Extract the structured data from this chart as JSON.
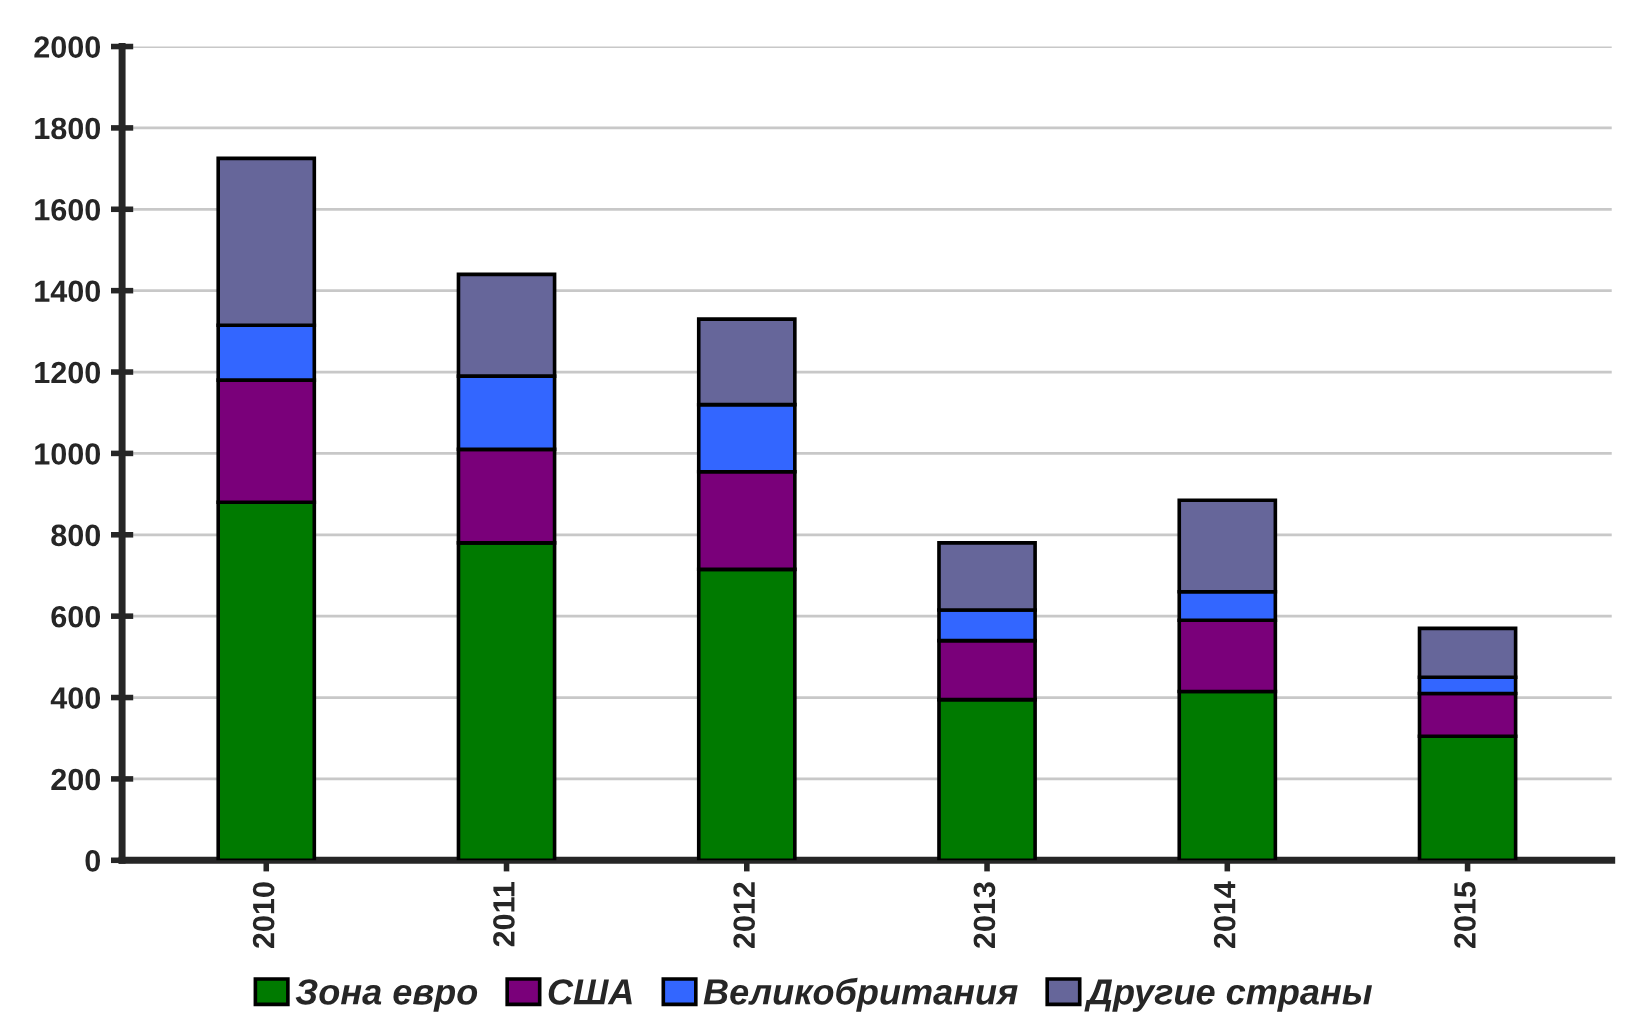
{
  "chart_data": {
    "type": "bar",
    "stacked": true,
    "categories": [
      "2010",
      "2011",
      "2012",
      "2013",
      "2014",
      "2015"
    ],
    "series": [
      {
        "name": "Зона евро",
        "color": "#007a00",
        "values": [
          880,
          780,
          715,
          395,
          415,
          305
        ]
      },
      {
        "name": "США",
        "color": "#7a007a",
        "values": [
          300,
          230,
          240,
          145,
          175,
          105
        ]
      },
      {
        "name": "Великобритания",
        "color": "#3366ff",
        "values": [
          135,
          180,
          165,
          75,
          70,
          40
        ]
      },
      {
        "name": "Другие страны",
        "color": "#66669a",
        "values": [
          410,
          250,
          210,
          165,
          225,
          120
        ]
      }
    ],
    "ylim": [
      0,
      2000
    ],
    "yticks": [
      0,
      200,
      400,
      600,
      800,
      1000,
      1200,
      1400,
      1600,
      1800,
      2000
    ],
    "grid": "y",
    "legend": "bottom"
  }
}
